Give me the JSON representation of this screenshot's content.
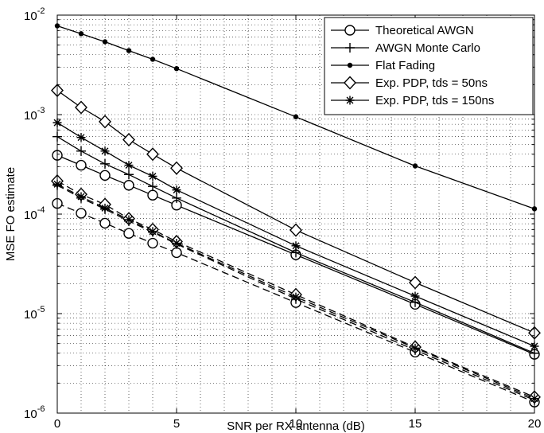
{
  "chart_data": {
    "type": "line",
    "title": "",
    "xlabel": "SNR per RX antenna (dB)",
    "ylabel": "MSE FO estimate",
    "xscale": "linear",
    "yscale": "log",
    "xlim": [
      0,
      20
    ],
    "ylim": [
      1e-06,
      0.01
    ],
    "grid": "dotted major and minor",
    "legend_position": "top-right",
    "x_ticks": [
      0,
      5,
      10,
      15,
      20
    ],
    "x_tick_labels": [
      "0",
      "5",
      "10",
      "15",
      "20"
    ],
    "y_ticks": [
      1e-06,
      1e-05,
      0.0001,
      0.001,
      0.01
    ],
    "y_tick_labels": [
      {
        "base": "10",
        "exp": "-6"
      },
      {
        "base": "10",
        "exp": "-5"
      },
      {
        "base": "10",
        "exp": "-4"
      },
      {
        "base": "10",
        "exp": "-3"
      },
      {
        "base": "10",
        "exp": "-2"
      }
    ],
    "series": [
      {
        "name": "Theoretical AWGN",
        "marker": "circle",
        "line": "solid",
        "x": [
          0,
          1,
          2,
          3,
          4,
          5,
          10,
          15,
          20
        ],
        "y": [
          0.00039,
          0.00031,
          0.000245,
          0.000195,
          0.000155,
          0.000123,
          3.9e-05,
          1.24e-05,
          3.9e-06
        ]
      },
      {
        "name": "",
        "marker": "circle",
        "line": "dashed",
        "x": [
          0,
          1,
          2,
          3,
          4,
          5,
          10,
          15,
          20
        ],
        "y": [
          0.000128,
          0.000102,
          8.1e-05,
          6.4e-05,
          5.1e-05,
          4.1e-05,
          1.29e-05,
          4.1e-06,
          1.29e-06
        ]
      },
      {
        "name": "AWGN Monte Carlo",
        "marker": "plus",
        "line": "solid",
        "x": [
          0,
          1,
          2,
          3,
          4,
          5,
          10,
          15,
          20
        ],
        "y": [
          0.0006,
          0.00043,
          0.00032,
          0.00025,
          0.00019,
          0.000145,
          4.1e-05,
          1.3e-05,
          4e-06
        ]
      },
      {
        "name": "",
        "marker": "plus",
        "line": "dashed",
        "x": [
          0,
          1,
          2,
          3,
          4,
          5,
          10,
          15,
          20
        ],
        "y": [
          0.000195,
          0.000145,
          0.000112,
          8.5e-05,
          6.6e-05,
          5e-05,
          1.4e-05,
          4.3e-06,
          1.35e-06
        ]
      },
      {
        "name": "Flat Fading",
        "marker": "dot",
        "line": "solid",
        "x": [
          0,
          1,
          2,
          3,
          4,
          5,
          10,
          15,
          20
        ],
        "y": [
          0.0078,
          0.0065,
          0.0054,
          0.0044,
          0.0036,
          0.0029,
          0.00095,
          0.000305,
          0.000113
        ]
      },
      {
        "name": "Exp. PDP, tds = 50ns",
        "marker": "diamond",
        "line": "solid",
        "x": [
          0,
          1,
          2,
          3,
          4,
          5,
          10,
          15,
          20
        ],
        "y": [
          0.00175,
          0.00118,
          0.00085,
          0.00056,
          0.0004,
          0.00029,
          6.9e-05,
          2.05e-05,
          6.4e-06
        ]
      },
      {
        "name": "",
        "marker": "diamond",
        "line": "dashed",
        "x": [
          0,
          1,
          2,
          3,
          4,
          5,
          10,
          15,
          20
        ],
        "y": [
          0.000215,
          0.000158,
          0.000125,
          9e-05,
          7e-05,
          5.3e-05,
          1.55e-05,
          4.6e-06,
          1.45e-06
        ]
      },
      {
        "name": "Exp. PDP, tds = 150ns",
        "marker": "star",
        "line": "solid",
        "x": [
          0,
          1,
          2,
          3,
          4,
          5,
          10,
          15,
          20
        ],
        "y": [
          0.00083,
          0.00059,
          0.00043,
          0.00031,
          0.00024,
          0.000175,
          4.8e-05,
          1.5e-05,
          4.7e-06
        ]
      },
      {
        "name": "",
        "marker": "star",
        "line": "dashed",
        "x": [
          0,
          1,
          2,
          3,
          4,
          5,
          10,
          15,
          20
        ],
        "y": [
          0.0002,
          0.00015,
          0.000115,
          8.8e-05,
          6.7e-05,
          5.1e-05,
          1.47e-05,
          4.5e-06,
          1.4e-06
        ]
      }
    ]
  }
}
